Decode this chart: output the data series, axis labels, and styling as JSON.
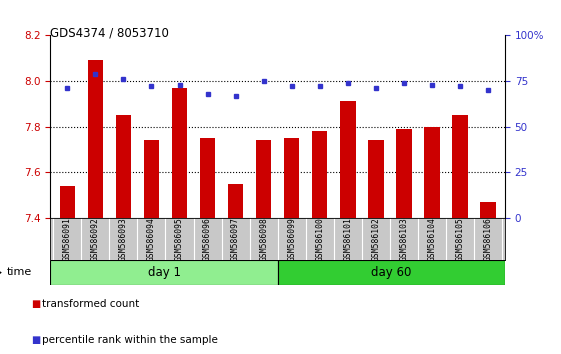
{
  "title": "GDS4374 / 8053710",
  "samples": [
    "GSM586091",
    "GSM586092",
    "GSM586093",
    "GSM586094",
    "GSM586095",
    "GSM586096",
    "GSM586097",
    "GSM586098",
    "GSM586099",
    "GSM586100",
    "GSM586101",
    "GSM586102",
    "GSM586103",
    "GSM586104",
    "GSM586105",
    "GSM586106"
  ],
  "red_values": [
    7.54,
    8.09,
    7.85,
    7.74,
    7.97,
    7.75,
    7.55,
    7.74,
    7.75,
    7.78,
    7.91,
    7.74,
    7.79,
    7.8,
    7.85,
    7.47
  ],
  "blue_values": [
    71,
    79,
    76,
    72,
    73,
    68,
    67,
    75,
    72,
    72,
    74,
    71,
    74,
    73,
    72,
    70
  ],
  "day1_count": 8,
  "day60_count": 8,
  "ylim_left": [
    7.4,
    8.2
  ],
  "ylim_right": [
    0,
    100
  ],
  "yticks_left": [
    7.4,
    7.6,
    7.8,
    8.0,
    8.2
  ],
  "yticks_right": [
    0,
    25,
    50,
    75,
    100
  ],
  "bar_color": "#cc0000",
  "dot_color": "#3333cc",
  "day1_color": "#90ee90",
  "day60_color": "#32cd32",
  "sample_box_color": "#c8c8c8",
  "left_label_color": "#cc0000",
  "right_label_color": "#3333cc",
  "legend_red_label": "transformed count",
  "legend_blue_label": "percentile rank within the sample",
  "time_label": "time"
}
